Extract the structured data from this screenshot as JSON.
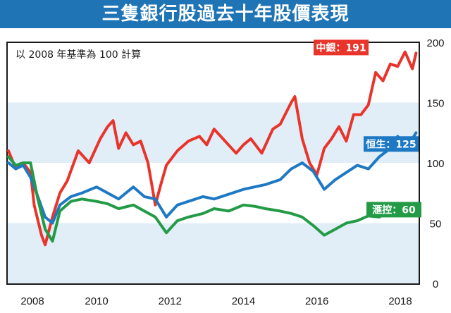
{
  "chart_data": {
    "type": "line",
    "title": "三隻銀行股過去十年股價表現",
    "note": "以 2008 年基準為 100 計算",
    "x_ticks": [
      "2008",
      "2010",
      "2012",
      "2014",
      "2016",
      "2018"
    ],
    "y_ticks": [
      "200",
      "150",
      "100",
      "50",
      "0"
    ],
    "ylim": [
      0,
      200
    ],
    "grid": "alternating horizontal bands",
    "series": [
      {
        "name": "中銀",
        "end_label": "中銀：191",
        "color": "#e8342a",
        "x": [
          2007.6,
          2007.8,
          2008.0,
          2008.2,
          2008.3,
          2008.5,
          2008.6,
          2008.8,
          2009.0,
          2009.2,
          2009.5,
          2009.8,
          2010.1,
          2010.3,
          2010.45,
          2010.6,
          2010.8,
          2011.0,
          2011.2,
          2011.4,
          2011.6,
          2011.75,
          2011.9,
          2012.2,
          2012.5,
          2012.8,
          2013.0,
          2013.2,
          2013.5,
          2013.8,
          2014.0,
          2014.2,
          2014.5,
          2014.8,
          2015.0,
          2015.3,
          2015.4,
          2015.6,
          2015.8,
          2016.0,
          2016.2,
          2016.4,
          2016.6,
          2016.8,
          2017.0,
          2017.2,
          2017.4,
          2017.6,
          2017.8,
          2018.0,
          2018.2,
          2018.4,
          2018.6,
          2018.7
        ],
        "values": [
          110,
          95,
          100,
          92,
          65,
          40,
          32,
          55,
          75,
          85,
          110,
          100,
          120,
          130,
          135,
          112,
          125,
          115,
          118,
          100,
          65,
          82,
          98,
          110,
          118,
          122,
          115,
          128,
          118,
          108,
          115,
          120,
          108,
          128,
          132,
          150,
          155,
          120,
          100,
          90,
          112,
          120,
          130,
          118,
          140,
          140,
          148,
          175,
          168,
          182,
          180,
          192,
          178,
          191
        ]
      },
      {
        "name": "恒生",
        "end_label": "恒生：125",
        "color": "#1e79c4",
        "x": [
          2007.6,
          2007.8,
          2008.0,
          2008.2,
          2008.4,
          2008.6,
          2008.8,
          2009.0,
          2009.3,
          2009.6,
          2010.0,
          2010.3,
          2010.6,
          2011.0,
          2011.3,
          2011.6,
          2011.9,
          2012.2,
          2012.5,
          2012.9,
          2013.2,
          2013.6,
          2014.0,
          2014.3,
          2014.6,
          2015.0,
          2015.3,
          2015.6,
          2015.9,
          2016.2,
          2016.5,
          2016.8,
          2017.1,
          2017.4,
          2017.7,
          2018.0,
          2018.2,
          2018.4,
          2018.6,
          2018.7
        ],
        "values": [
          100,
          95,
          98,
          88,
          72,
          55,
          50,
          65,
          72,
          75,
          80,
          75,
          70,
          80,
          72,
          70,
          55,
          65,
          68,
          72,
          70,
          74,
          78,
          80,
          82,
          86,
          95,
          100,
          93,
          78,
          86,
          92,
          98,
          95,
          105,
          112,
          122,
          115,
          120,
          125
        ]
      },
      {
        "name": "滙控",
        "end_label": "滙控：60",
        "color": "#239b46",
        "x": [
          2007.6,
          2007.8,
          2008.0,
          2008.2,
          2008.4,
          2008.6,
          2008.8,
          2009.0,
          2009.3,
          2009.6,
          2010.0,
          2010.3,
          2010.6,
          2011.0,
          2011.3,
          2011.6,
          2011.9,
          2012.2,
          2012.5,
          2012.9,
          2013.2,
          2013.6,
          2014.0,
          2014.3,
          2014.6,
          2015.0,
          2015.3,
          2015.6,
          2015.9,
          2016.2,
          2016.5,
          2016.8,
          2017.1,
          2017.4,
          2017.7,
          2018.0,
          2018.2,
          2018.4,
          2018.6,
          2018.7
        ],
        "values": [
          105,
          98,
          100,
          100,
          70,
          45,
          35,
          60,
          68,
          70,
          68,
          66,
          62,
          65,
          60,
          55,
          42,
          52,
          55,
          58,
          62,
          60,
          65,
          64,
          62,
          60,
          58,
          55,
          48,
          40,
          45,
          50,
          52,
          56,
          55,
          62,
          60,
          65,
          58,
          60
        ]
      }
    ]
  }
}
